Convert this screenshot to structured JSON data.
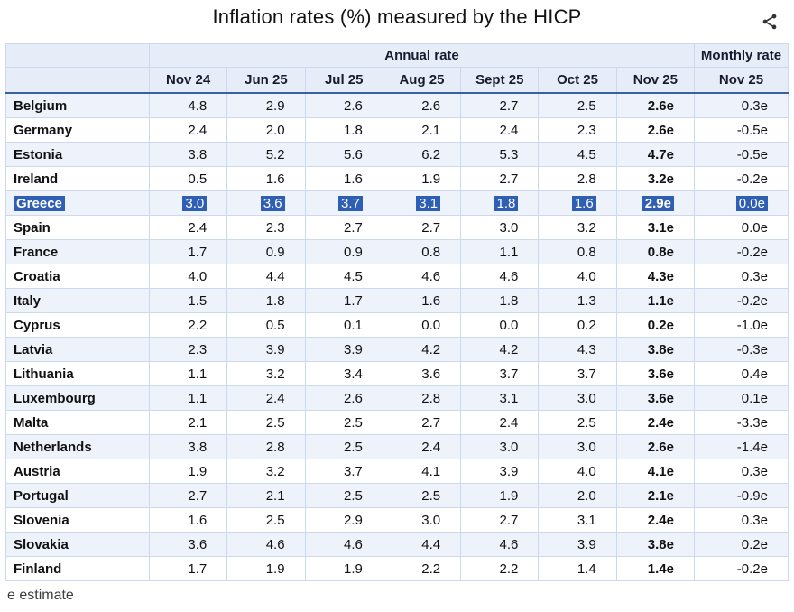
{
  "page": {
    "title": "Inflation rates (%) measured by the HICP",
    "footnote": "e estimate"
  },
  "icons": {
    "share": "share-icon"
  },
  "colors": {
    "selection_blue": "#2f5eb5",
    "header_bg": "#e7edf8",
    "row_stripe": "#eef2fa",
    "grid_line": "#ccd8ee",
    "header_rule": "#38629f"
  },
  "chart_data": {
    "type": "table",
    "title": "Inflation rates (%) measured by the HICP",
    "group_headers": {
      "annual": "Annual rate",
      "monthly": "Monthly rate"
    },
    "columns": [
      "Nov 24",
      "Jun 25",
      "Jul 25",
      "Aug 25",
      "Sept 25",
      "Oct 25",
      "Nov 25"
    ],
    "monthly_column": "Nov 25",
    "rows": [
      {
        "country": "Belgium",
        "values": [
          "4.8",
          "2.9",
          "2.6",
          "2.6",
          "2.7",
          "2.5",
          "2.6e"
        ],
        "monthly": "0.3e",
        "selected": false
      },
      {
        "country": "Germany",
        "values": [
          "2.4",
          "2.0",
          "1.8",
          "2.1",
          "2.4",
          "2.3",
          "2.6e"
        ],
        "monthly": "-0.5e",
        "selected": false
      },
      {
        "country": "Estonia",
        "values": [
          "3.8",
          "5.2",
          "5.6",
          "6.2",
          "5.3",
          "4.5",
          "4.7e"
        ],
        "monthly": "-0.5e",
        "selected": false
      },
      {
        "country": "Ireland",
        "values": [
          "0.5",
          "1.6",
          "1.6",
          "1.9",
          "2.7",
          "2.8",
          "3.2e"
        ],
        "monthly": "-0.2e",
        "selected": false
      },
      {
        "country": "Greece",
        "values": [
          "3.0",
          "3.6",
          "3.7",
          "3.1",
          "1.8",
          "1.6",
          "2.9e"
        ],
        "monthly": "0.0e",
        "selected": true
      },
      {
        "country": "Spain",
        "values": [
          "2.4",
          "2.3",
          "2.7",
          "2.7",
          "3.0",
          "3.2",
          "3.1e"
        ],
        "monthly": "0.0e",
        "selected": false
      },
      {
        "country": "France",
        "values": [
          "1.7",
          "0.9",
          "0.9",
          "0.8",
          "1.1",
          "0.8",
          "0.8e"
        ],
        "monthly": "-0.2e",
        "selected": false
      },
      {
        "country": "Croatia",
        "values": [
          "4.0",
          "4.4",
          "4.5",
          "4.6",
          "4.6",
          "4.0",
          "4.3e"
        ],
        "monthly": "0.3e",
        "selected": false
      },
      {
        "country": "Italy",
        "values": [
          "1.5",
          "1.8",
          "1.7",
          "1.6",
          "1.8",
          "1.3",
          "1.1e"
        ],
        "monthly": "-0.2e",
        "selected": false
      },
      {
        "country": "Cyprus",
        "values": [
          "2.2",
          "0.5",
          "0.1",
          "0.0",
          "0.0",
          "0.2",
          "0.2e"
        ],
        "monthly": "-1.0e",
        "selected": false
      },
      {
        "country": "Latvia",
        "values": [
          "2.3",
          "3.9",
          "3.9",
          "4.2",
          "4.2",
          "4.3",
          "3.8e"
        ],
        "monthly": "-0.3e",
        "selected": false
      },
      {
        "country": "Lithuania",
        "values": [
          "1.1",
          "3.2",
          "3.4",
          "3.6",
          "3.7",
          "3.7",
          "3.6e"
        ],
        "monthly": "0.4e",
        "selected": false
      },
      {
        "country": "Luxembourg",
        "values": [
          "1.1",
          "2.4",
          "2.6",
          "2.8",
          "3.1",
          "3.0",
          "3.6e"
        ],
        "monthly": "0.1e",
        "selected": false
      },
      {
        "country": "Malta",
        "values": [
          "2.1",
          "2.5",
          "2.5",
          "2.7",
          "2.4",
          "2.5",
          "2.4e"
        ],
        "monthly": "-3.3e",
        "selected": false
      },
      {
        "country": "Netherlands",
        "values": [
          "3.8",
          "2.8",
          "2.5",
          "2.4",
          "3.0",
          "3.0",
          "2.6e"
        ],
        "monthly": "-1.4e",
        "selected": false
      },
      {
        "country": "Austria",
        "values": [
          "1.9",
          "3.2",
          "3.7",
          "4.1",
          "3.9",
          "4.0",
          "4.1e"
        ],
        "monthly": "0.3e",
        "selected": false
      },
      {
        "country": "Portugal",
        "values": [
          "2.7",
          "2.1",
          "2.5",
          "2.5",
          "1.9",
          "2.0",
          "2.1e"
        ],
        "monthly": "-0.9e",
        "selected": false
      },
      {
        "country": "Slovenia",
        "values": [
          "1.6",
          "2.5",
          "2.9",
          "3.0",
          "2.7",
          "3.1",
          "2.4e"
        ],
        "monthly": "0.3e",
        "selected": false
      },
      {
        "country": "Slovakia",
        "values": [
          "3.6",
          "4.6",
          "4.6",
          "4.4",
          "4.6",
          "3.9",
          "3.8e"
        ],
        "monthly": "0.2e",
        "selected": false
      },
      {
        "country": "Finland",
        "values": [
          "1.7",
          "1.9",
          "1.9",
          "2.2",
          "2.2",
          "1.4",
          "1.4e"
        ],
        "monthly": "-0.2e",
        "selected": false
      }
    ]
  }
}
